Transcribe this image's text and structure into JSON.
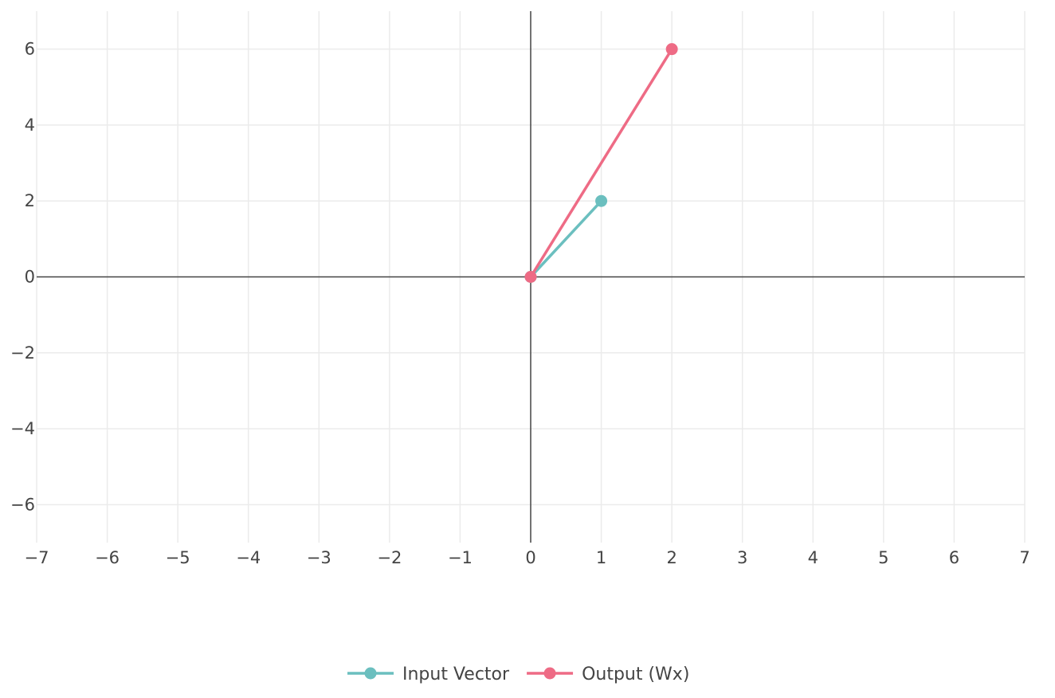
{
  "chart_data": {
    "type": "line",
    "title": "",
    "xlabel": "",
    "ylabel": "",
    "xlim": [
      -7,
      7
    ],
    "ylim": [
      -7,
      7
    ],
    "x_ticks": [
      -7,
      -6,
      -5,
      -4,
      -3,
      -2,
      -1,
      0,
      1,
      2,
      3,
      4,
      5,
      6,
      7
    ],
    "x_tick_labels": [
      "−7",
      "−6",
      "−5",
      "−4",
      "−3",
      "−2",
      "−1",
      "0",
      "1",
      "2",
      "3",
      "4",
      "5",
      "6",
      "7"
    ],
    "y_ticks": [
      6,
      4,
      2,
      0,
      -2,
      -4,
      -6
    ],
    "y_tick_labels": [
      "6",
      "4",
      "2",
      "0",
      "−2",
      "−4",
      "−6"
    ],
    "grid": true,
    "legend_position": "bottom-center",
    "series": [
      {
        "name": "Input Vector",
        "color": "#6bbfbf",
        "x": [
          0,
          1
        ],
        "y": [
          0,
          2
        ]
      },
      {
        "name": "Output (Wx)",
        "color": "#ee6b85",
        "x": [
          0,
          2
        ],
        "y": [
          0,
          6
        ]
      }
    ]
  }
}
